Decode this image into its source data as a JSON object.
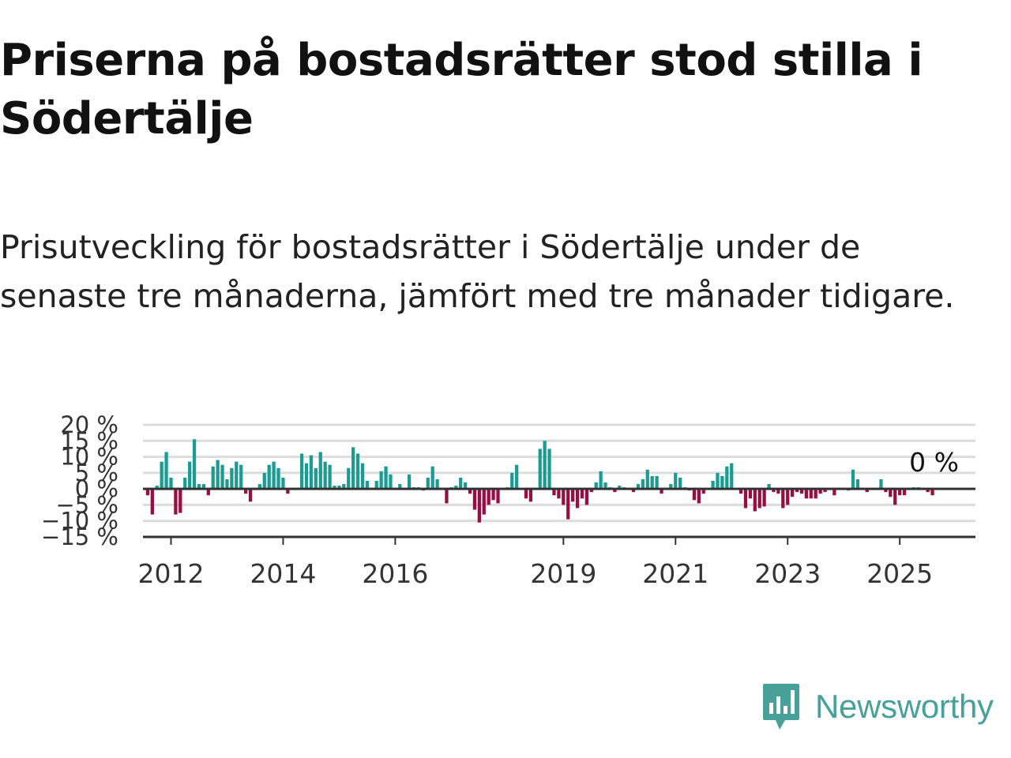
{
  "title": "Priserna på bostadsrätter stod stilla i Södertälje",
  "subtitle": "Prisutveckling för bostadsrätter i Södertälje under de senaste tre månaderna, jämfört med tre månader tidigare.",
  "brand": {
    "name": "Newsworthy",
    "icon": "newsworthy-logo-icon",
    "color": "#48a199"
  },
  "colors": {
    "positive": "#1a9c93",
    "negative": "#980e40",
    "grid": "#dcdcdc",
    "axis": "#333333"
  },
  "chart_data": {
    "type": "bar",
    "ylim": [
      -15,
      20
    ],
    "y_ticks": [
      20,
      15,
      10,
      5,
      0,
      -5,
      -10,
      -15
    ],
    "y_tick_labels": [
      "20 %",
      "15 %",
      "10 %",
      "5 %",
      "0 %",
      "−5 %",
      "−10 %",
      "−15 %"
    ],
    "x_tick_labels": [
      "2012",
      "2014",
      "2016",
      "2019",
      "2021",
      "2023",
      "2025"
    ],
    "x_tick_positions": [
      2012,
      2014,
      2016,
      2019,
      2021,
      2023,
      2025
    ],
    "start": 2011.5,
    "step": 0.08333,
    "grid": true,
    "end_label": "0 %",
    "values": [
      0,
      -2,
      -8,
      1,
      8.5,
      11.5,
      3.5,
      -8,
      -7.5,
      3.5,
      8.5,
      15.5,
      1.5,
      1.5,
      -2,
      7,
      9,
      7.5,
      3,
      6.5,
      8.5,
      7.5,
      -1.5,
      -4,
      0,
      1.5,
      5,
      7.5,
      8.5,
      6.5,
      3.5,
      -1.5,
      0,
      0,
      11,
      8,
      10.5,
      6.5,
      11.5,
      8.5,
      7.5,
      1,
      1,
      1.5,
      6.5,
      13,
      11,
      8,
      2.5,
      0,
      2.5,
      5.5,
      7,
      4.5,
      0,
      1.5,
      0,
      4.5,
      0.5,
      0.5,
      -0.5,
      3.5,
      7,
      3,
      0,
      -4.5,
      0.5,
      1,
      3.5,
      2,
      -1.5,
      -6.5,
      -10.5,
      -8,
      -5,
      -3.5,
      -4.5,
      0,
      0.5,
      5,
      7.5,
      0,
      -3,
      -4,
      0,
      12.5,
      15,
      12.5,
      -2,
      -3,
      -5,
      -9.5,
      -4,
      -6,
      -3,
      -5,
      -1,
      2,
      5.5,
      2,
      0.5,
      -1,
      1,
      0.5,
      0,
      -1,
      1.5,
      3,
      6,
      4,
      4,
      -1.5,
      0,
      1.5,
      5,
      3.5,
      0.5,
      -0.5,
      -3.5,
      -4.5,
      -1.5,
      0,
      2.5,
      5,
      4,
      7,
      8,
      0,
      -1.5,
      -6,
      -3,
      -7,
      -6,
      -5.5,
      1.5,
      -1,
      -1.5,
      -6,
      -5,
      -2.5,
      -1,
      -1.5,
      -3,
      -3,
      -3,
      -1.5,
      -1,
      0,
      -2,
      0,
      0,
      -0.5,
      6,
      3,
      0,
      -1,
      0,
      0,
      3,
      -1,
      -2.5,
      -5,
      -2,
      -2,
      0,
      0.5,
      0.5,
      0,
      -1,
      -2,
      0
    ]
  }
}
